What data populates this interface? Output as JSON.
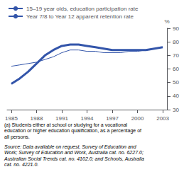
{
  "chart_data": {
    "type": "line",
    "x": [
      1985,
      1986,
      1987,
      1988,
      1989,
      1990,
      1991,
      1992,
      1993,
      1994,
      1995,
      1996,
      1997,
      1998,
      1999,
      2000,
      2001,
      2002,
      2003
    ],
    "series": [
      {
        "name": "15–19 year olds, education participation rate",
        "color": "#3355aa",
        "values": [
          62,
          63,
          64,
          65,
          67,
          69,
          72,
          74,
          74,
          73,
          73,
          72,
          72,
          72,
          73,
          73,
          74,
          75,
          76
        ]
      },
      {
        "name": "Year 7/8 to Year 12 apparent retention rate",
        "color": "#3355aa",
        "values": [
          49,
          53,
          58,
          64,
          70,
          74,
          77,
          78,
          78,
          77,
          76,
          75,
          74,
          74,
          74,
          74,
          74,
          75,
          76
        ]
      }
    ],
    "y_label": "%",
    "xlim": [
      1984.5,
      2003.5
    ],
    "xticks": [
      1985,
      1988,
      1991,
      1994,
      1997,
      2000,
      2003
    ],
    "ylim": [
      30,
      90
    ],
    "yticks": [
      30,
      40,
      50,
      60,
      70,
      80,
      90
    ],
    "grid": false,
    "legend": "upper left",
    "annotations": [
      "(a) Students either at school or studying for a vocational\neducation or higher education qualification, as a percentage of\nall persons.",
      "Source: Data available on request, Survey of Education and\nWork; Survey of Education and Work, Australia cat. no. 6227.0;\nAustralian Social Trends cat. no. 4102.0; and Schools, Australia\ncat. no. 4221.0."
    ]
  }
}
